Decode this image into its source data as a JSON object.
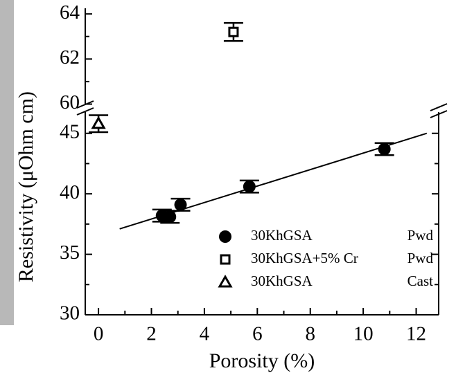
{
  "chart_data": {
    "type": "scatter",
    "x_label": "Porosity (%)",
    "y_label": "Resistivity (μOhm cm)",
    "xlim": [
      -0.5,
      12.85
    ],
    "xticks": [
      0,
      2,
      4,
      6,
      8,
      10,
      12
    ],
    "xminor": [
      1,
      3,
      5,
      7,
      9,
      11
    ],
    "y_segments": [
      {
        "ylim": [
          30,
          46.7
        ],
        "yticks": [
          30,
          35,
          40,
          45
        ],
        "yminor": [
          32.5,
          37.5,
          42.5
        ]
      },
      {
        "ylim": [
          59.8,
          64.25
        ],
        "yticks": [
          60,
          62,
          64
        ],
        "yminor": [
          61,
          63
        ]
      }
    ],
    "series": [
      {
        "name": "30KhGSA",
        "form": "Pwd",
        "marker": "circle",
        "color": "#000000",
        "x": [
          2.4,
          2.7,
          3.1,
          5.7,
          10.8
        ],
        "y": [
          38.2,
          38.1,
          39.1,
          40.6,
          43.7
        ],
        "yerr": [
          0.5,
          0.5,
          0.5,
          0.5,
          0.5
        ]
      },
      {
        "name": "30KhGSA+5% Cr",
        "form": "Pwd",
        "marker": "square",
        "color": "#000000",
        "x": [
          5.1
        ],
        "y": [
          63.2
        ],
        "yerr": [
          0.4
        ]
      },
      {
        "name": "30KhGSA",
        "form": "Cast",
        "marker": "triangle",
        "color": "#000000",
        "x": [
          0
        ],
        "y": [
          45.8
        ],
        "yerr": [
          0.7
        ]
      }
    ],
    "fit": {
      "x": [
        0.8,
        12.4
      ],
      "y": [
        37.1,
        45.0
      ]
    }
  }
}
